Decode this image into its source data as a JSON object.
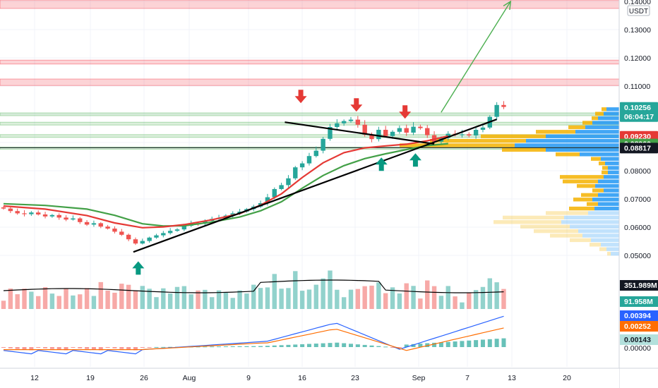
{
  "chart_data": {
    "type": "candlestick",
    "unit_label": "USDT",
    "x_ticks": [
      "12",
      "19",
      "26",
      "Aug",
      "9",
      "16",
      "23",
      "Sep",
      "7",
      "13",
      "20"
    ],
    "price_axis": {
      "ticks": [
        "0.14000",
        "0.13000",
        "0.12000",
        "0.11000",
        "0.10000",
        "0.09000",
        "0.08000",
        "0.07000",
        "0.06000",
        "0.05000"
      ],
      "range": [
        0.045,
        0.1405
      ]
    },
    "price_badges": [
      {
        "id": "last",
        "lines": [
          "0.10256",
          "06:04:17"
        ],
        "value": 0.10256,
        "color": "#26a69a"
      },
      {
        "id": "ma_fast",
        "lines": [
          "0.09230"
        ],
        "value": 0.0923,
        "color": "#e53935"
      },
      {
        "id": "ma_slow",
        "lines": [
          "0.08960"
        ],
        "value": 0.0896,
        "color": "#43a047"
      },
      {
        "id": "crosshair",
        "lines": [
          "0.08817"
        ],
        "value": 0.08817,
        "color": "#131722"
      }
    ],
    "resistance_zones": [
      [
        0.1375,
        0.1405
      ],
      [
        0.1178,
        0.1192
      ],
      [
        0.1102,
        0.1125
      ]
    ],
    "support_zones": [
      [
        0.0995,
        0.1005
      ],
      [
        0.0962,
        0.0972
      ],
      [
        0.0918,
        0.0928
      ],
      [
        0.0876,
        0.0884
      ]
    ],
    "horizontal_line": 0.08817,
    "ma_fast": [
      [
        0,
        0.0675
      ],
      [
        6,
        0.0664
      ],
      [
        12,
        0.0641
      ],
      [
        16,
        0.0615
      ],
      [
        20,
        0.0598
      ],
      [
        23,
        0.0601
      ],
      [
        26,
        0.0609
      ],
      [
        30,
        0.0626
      ],
      [
        34,
        0.0648
      ],
      [
        37,
        0.0678
      ],
      [
        40,
        0.0718
      ],
      [
        43,
        0.0776
      ],
      [
        46,
        0.0828
      ],
      [
        49,
        0.0864
      ],
      [
        52,
        0.0881
      ],
      [
        55,
        0.0888
      ],
      [
        58,
        0.0894
      ],
      [
        61,
        0.0906
      ],
      [
        64,
        0.0923
      ]
    ],
    "ma_slow": [
      [
        0,
        0.0683
      ],
      [
        6,
        0.0677
      ],
      [
        12,
        0.0664
      ],
      [
        16,
        0.0642
      ],
      [
        20,
        0.0612
      ],
      [
        23,
        0.0604
      ],
      [
        26,
        0.0605
      ],
      [
        30,
        0.0618
      ],
      [
        34,
        0.0636
      ],
      [
        37,
        0.0658
      ],
      [
        40,
        0.069
      ],
      [
        43,
        0.0738
      ],
      [
        46,
        0.0783
      ],
      [
        49,
        0.0818
      ],
      [
        52,
        0.0843
      ],
      [
        55,
        0.086
      ],
      [
        58,
        0.0875
      ],
      [
        61,
        0.0889
      ],
      [
        64,
        0.0896
      ]
    ],
    "trendlines": [
      {
        "from": [
          19.2,
          0.0512
        ],
        "to": [
          71.5,
          0.0982
        ]
      },
      {
        "from": [
          41.0,
          0.0972
        ],
        "to": [
          62.5,
          0.0895
        ]
      }
    ],
    "target_arrow": {
      "from": [
        63.5,
        0.1007
      ],
      "to": [
        73.5,
        0.14
      ]
    },
    "arrows_down": [
      [
        43.3,
        0.1042
      ],
      [
        51.3,
        0.1012
      ],
      [
        58.3,
        0.0987
      ]
    ],
    "arrows_up": [
      [
        19.9,
        0.0479
      ],
      [
        54.9,
        0.0847
      ],
      [
        59.8,
        0.0862
      ]
    ],
    "closes": [
      0.0666,
      0.0657,
      0.0649,
      0.0646,
      0.0652,
      0.0645,
      0.0638,
      0.0643,
      0.0634,
      0.0627,
      0.0631,
      0.0618,
      0.0609,
      0.0614,
      0.0602,
      0.0595,
      0.0584,
      0.0573,
      0.0557,
      0.0542,
      0.0551,
      0.0563,
      0.0571,
      0.0579,
      0.0587,
      0.0592,
      0.0605,
      0.0614,
      0.0612,
      0.0622,
      0.0629,
      0.0633,
      0.0641,
      0.0649,
      0.0655,
      0.0664,
      0.0673,
      0.0685,
      0.0706,
      0.0735,
      0.0749,
      0.0773,
      0.0812,
      0.0826,
      0.0852,
      0.0871,
      0.0913,
      0.0955,
      0.0968,
      0.0976,
      0.0981,
      0.0963,
      0.0928,
      0.0912,
      0.0945,
      0.0923,
      0.0938,
      0.0951,
      0.0935,
      0.0956,
      0.0951,
      0.0926,
      0.0903,
      0.0916,
      0.0931,
      0.0927,
      0.0929,
      0.0925,
      0.0945,
      0.0953,
      0.0991,
      0.1033,
      0.1026
    ],
    "volume_ma_label": "351.989M",
    "volume_label": "91.958M",
    "macd": {
      "labels": [
        "0.00394",
        "0.00252",
        "0.00143"
      ],
      "colors": [
        "#2962ff",
        "#ff6d00",
        "#26a69a"
      ],
      "zero_label": "0.00000"
    },
    "volume_profile": {
      "bins": [
        {
          "price": 0.1018,
          "up": 18,
          "down": 7
        },
        {
          "price": 0.1002,
          "up": 22,
          "down": 12
        },
        {
          "price": 0.0986,
          "up": 30,
          "down": 9
        },
        {
          "price": 0.097,
          "up": 38,
          "down": 14
        },
        {
          "price": 0.0954,
          "up": 48,
          "down": 24
        },
        {
          "price": 0.0938,
          "up": 62,
          "down": 56
        },
        {
          "price": 0.0922,
          "up": 104,
          "down": 92
        },
        {
          "price": 0.0906,
          "up": 132,
          "down": 136
        },
        {
          "price": 0.089,
          "up": 148,
          "down": 163
        },
        {
          "price": 0.0874,
          "up": 104,
          "down": 62
        },
        {
          "price": 0.0858,
          "up": 56,
          "down": 34
        },
        {
          "price": 0.0842,
          "up": 26,
          "down": 14
        },
        {
          "price": 0.0826,
          "up": 20,
          "down": 9
        },
        {
          "price": 0.081,
          "up": 16,
          "down": 8
        },
        {
          "price": 0.0794,
          "up": 16,
          "down": 9
        },
        {
          "price": 0.0778,
          "up": 22,
          "down": 62
        },
        {
          "price": 0.0762,
          "up": 30,
          "down": 50
        },
        {
          "price": 0.0746,
          "up": 34,
          "down": 26
        },
        {
          "price": 0.073,
          "up": 22,
          "down": 16
        },
        {
          "price": 0.0714,
          "up": 30,
          "down": 24
        },
        {
          "price": 0.0698,
          "up": 38,
          "down": 27
        },
        {
          "price": 0.0682,
          "up": 30,
          "down": 16
        },
        {
          "price": 0.0666,
          "up": 35,
          "down": 36
        },
        {
          "price": 0.065,
          "up": 44,
          "down": 60
        },
        {
          "price": 0.0634,
          "up": 78,
          "down": 87
        },
        {
          "price": 0.0618,
          "up": 82,
          "down": 96
        },
        {
          "price": 0.0602,
          "up": 70,
          "down": 70
        },
        {
          "price": 0.0586,
          "up": 58,
          "down": 63
        },
        {
          "price": 0.057,
          "up": 52,
          "down": 46
        },
        {
          "price": 0.0554,
          "up": 40,
          "down": 30
        },
        {
          "price": 0.0538,
          "up": 26,
          "down": 16
        },
        {
          "price": 0.0522,
          "up": 18,
          "down": 10
        },
        {
          "price": 0.0506,
          "up": 12,
          "down": 5
        }
      ]
    }
  }
}
